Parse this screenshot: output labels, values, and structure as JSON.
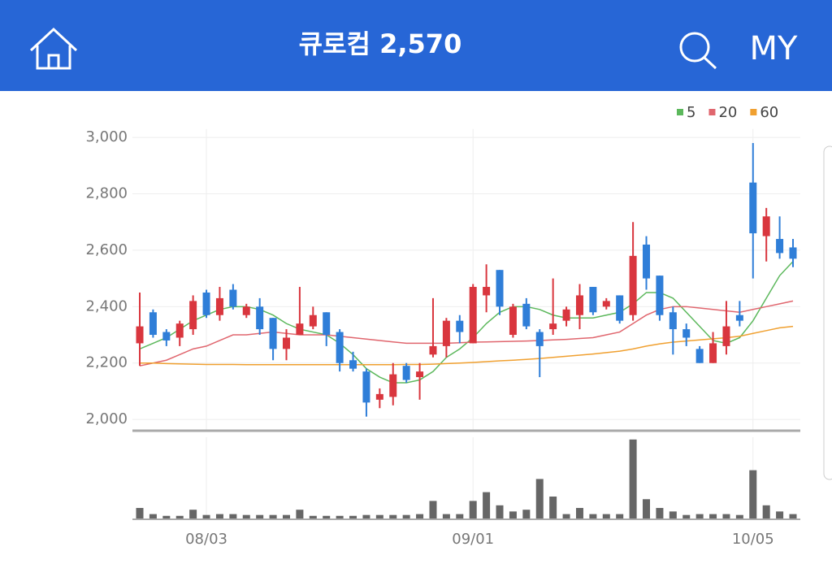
{
  "header": {
    "title": "큐로컴 2,570",
    "right": "MY"
  },
  "chart_data": {
    "type": "candlestick",
    "categories": [
      null,
      null,
      null,
      null,
      null,
      "08/03",
      null,
      null,
      null,
      null,
      null,
      null,
      null,
      null,
      null,
      null,
      null,
      null,
      null,
      null,
      null,
      null,
      null,
      null,
      null,
      "09/01",
      null,
      null,
      null,
      null,
      null,
      null,
      null,
      null,
      null,
      null,
      null,
      null,
      null,
      null,
      null,
      null,
      null,
      null,
      null,
      null,
      "10/05",
      null,
      null,
      null
    ],
    "open": [
      2270,
      2380,
      2310,
      2290,
      2320,
      2450,
      2370,
      2460,
      2370,
      2400,
      2360,
      2250,
      2300,
      2330,
      2380,
      2310,
      2210,
      2170,
      2070,
      2080,
      2190,
      2150,
      2230,
      2260,
      2350,
      2270,
      2440,
      2530,
      2300,
      2410,
      2310,
      2320,
      2350,
      2370,
      2470,
      2400,
      2440,
      2370,
      2620,
      2510,
      2380,
      2320,
      2250,
      2200,
      2260,
      2370,
      2840,
      2650,
      2640,
      2610
    ],
    "high": [
      2450,
      2390,
      2320,
      2350,
      2440,
      2460,
      2470,
      2480,
      2410,
      2430,
      2360,
      2320,
      2470,
      2400,
      2380,
      2320,
      2240,
      2180,
      2110,
      2200,
      2200,
      2200,
      2430,
      2360,
      2370,
      2480,
      2550,
      2530,
      2410,
      2430,
      2320,
      2500,
      2400,
      2480,
      2470,
      2430,
      2440,
      2700,
      2650,
      2510,
      2400,
      2340,
      2260,
      2310,
      2420,
      2420,
      2980,
      2750,
      2720,
      2640
    ],
    "low": [
      2190,
      2290,
      2260,
      2260,
      2300,
      2360,
      2350,
      2390,
      2360,
      2300,
      2210,
      2210,
      2300,
      2320,
      2260,
      2170,
      2170,
      2010,
      2040,
      2050,
      2130,
      2070,
      2220,
      2220,
      2270,
      2270,
      2380,
      2370,
      2290,
      2320,
      2150,
      2300,
      2330,
      2320,
      2370,
      2390,
      2340,
      2350,
      2460,
      2350,
      2230,
      2260,
      2200,
      2200,
      2230,
      2330,
      2500,
      2560,
      2570,
      2540
    ],
    "close": [
      2330,
      2300,
      2280,
      2340,
      2420,
      2370,
      2430,
      2400,
      2400,
      2320,
      2250,
      2290,
      2340,
      2370,
      2300,
      2200,
      2180,
      2060,
      2090,
      2160,
      2140,
      2170,
      2260,
      2350,
      2310,
      2470,
      2470,
      2400,
      2400,
      2330,
      2260,
      2340,
      2390,
      2440,
      2380,
      2420,
      2350,
      2580,
      2500,
      2370,
      2320,
      2290,
      2200,
      2270,
      2330,
      2350,
      2660,
      2720,
      2590,
      2570
    ],
    "up_color": "#d9363e",
    "down_color": "#2f7ed8",
    "series": [
      {
        "name": "5",
        "color": "#5cb85c",
        "values": [
          2250,
          2270,
          2290,
          2320,
          2350,
          2370,
          2390,
          2400,
          2400,
          2390,
          2370,
          2340,
          2320,
          2310,
          2300,
          2270,
          2230,
          2180,
          2150,
          2130,
          2130,
          2140,
          2170,
          2220,
          2250,
          2290,
          2340,
          2380,
          2400,
          2400,
          2390,
          2370,
          2360,
          2360,
          2360,
          2370,
          2380,
          2410,
          2450,
          2450,
          2430,
          2380,
          2330,
          2280,
          2270,
          2290,
          2350,
          2430,
          2510,
          2560
        ]
      },
      {
        "name": "20",
        "color": "#e0666e",
        "values": [
          2190,
          2200,
          2210,
          2230,
          2250,
          2260,
          2280,
          2300,
          2300,
          2305,
          2310,
          2305,
          2300,
          2300,
          2300,
          2295,
          2290,
          2285,
          2280,
          2275,
          2270,
          2270,
          2270,
          2270,
          2272,
          2274,
          2275,
          2276,
          2277,
          2278,
          2280,
          2282,
          2284,
          2287,
          2290,
          2300,
          2310,
          2340,
          2370,
          2390,
          2400,
          2400,
          2395,
          2390,
          2385,
          2380,
          2390,
          2400,
          2410,
          2420
        ]
      },
      {
        "name": "60",
        "color": "#f0a030",
        "values": [
          2200,
          2200,
          2198,
          2197,
          2196,
          2195,
          2195,
          2195,
          2194,
          2194,
          2194,
          2194,
          2194,
          2194,
          2194,
          2194,
          2194,
          2194,
          2194,
          2194,
          2195,
          2195,
          2196,
          2198,
          2200,
          2202,
          2205,
          2208,
          2210,
          2213,
          2216,
          2220,
          2224,
          2228,
          2232,
          2237,
          2242,
          2250,
          2260,
          2268,
          2274,
          2278,
          2282,
          2286,
          2290,
          2295,
          2305,
          2315,
          2325,
          2330
        ]
      }
    ],
    "ylim": [
      1960,
      3030
    ],
    "yticks": [
      {
        "value": 2000,
        "label": "2,000"
      },
      {
        "value": 2200,
        "label": "2,200"
      },
      {
        "value": 2400,
        "label": "2,400"
      },
      {
        "value": 2600,
        "label": "2,600"
      },
      {
        "value": 2800,
        "label": "2,800"
      },
      {
        "value": 3000,
        "label": "3,000"
      }
    ],
    "grid": true,
    "volume": {
      "color": "#666666",
      "ylim": [
        0,
        100
      ],
      "values": [
        12,
        5,
        3,
        3,
        10,
        4,
        5,
        5,
        4,
        4,
        4,
        4,
        10,
        3,
        3,
        3,
        3,
        4,
        4,
        4,
        4,
        5,
        20,
        5,
        5,
        20,
        30,
        15,
        8,
        10,
        45,
        25,
        5,
        12,
        5,
        5,
        5,
        90,
        22,
        12,
        8,
        4,
        5,
        5,
        5,
        4,
        55,
        15,
        8,
        5
      ]
    }
  }
}
